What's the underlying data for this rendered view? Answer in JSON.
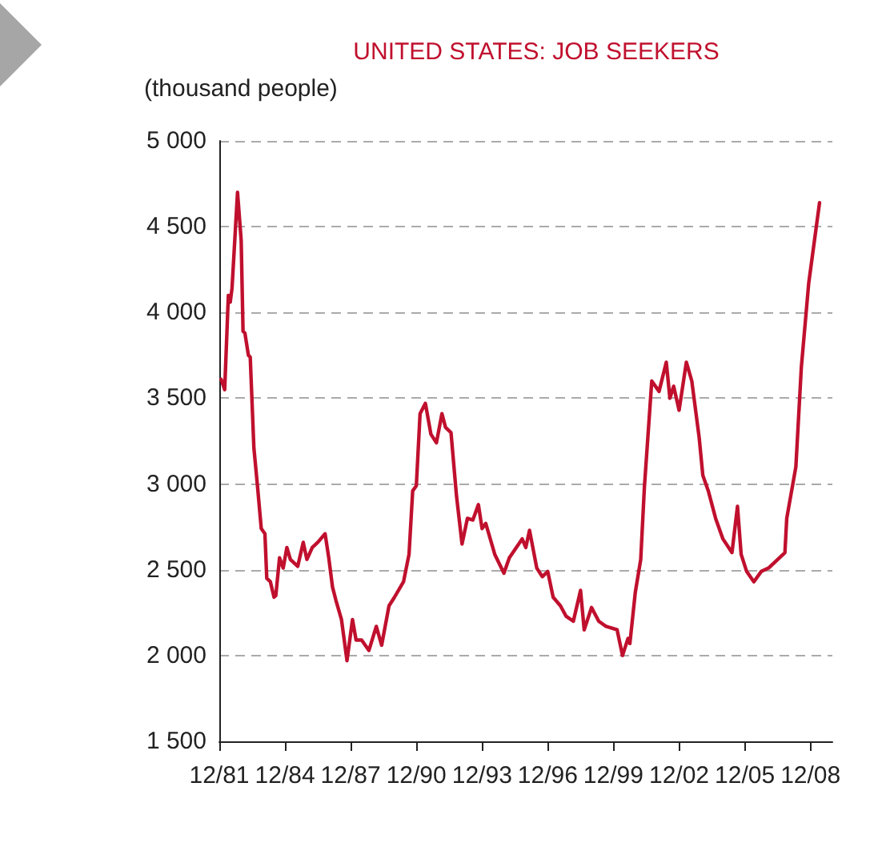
{
  "chart_data": {
    "type": "line",
    "title": "UNITED STATES: JOB SEEKERS",
    "ylabel": "(thousand people)",
    "x": [
      "1982-01",
      "1982-03",
      "1982-05",
      "1982-06",
      "1982-07",
      "1982-10",
      "1982-12",
      "1983-01",
      "1983-02",
      "1983-04",
      "1983-05",
      "1983-07",
      "1983-09",
      "1983-11",
      "1984-01",
      "1984-02",
      "1984-04",
      "1984-06",
      "1984-07",
      "1984-09",
      "1984-11",
      "1985-01",
      "1985-03",
      "1985-07",
      "1985-10",
      "1985-12",
      "1986-03",
      "1986-06",
      "1986-10",
      "1986-12",
      "1987-02",
      "1987-04",
      "1987-07",
      "1987-10",
      "1988-01",
      "1988-03",
      "1988-06",
      "1988-10",
      "1989-02",
      "1989-05",
      "1989-09",
      "1989-12",
      "1990-05",
      "1990-08",
      "1990-10",
      "1990-12",
      "1991-02",
      "1991-05",
      "1991-08",
      "1991-11",
      "1992-02",
      "1992-04",
      "1992-07",
      "1992-10",
      "1993-01",
      "1993-04",
      "1993-07",
      "1993-10",
      "1993-12",
      "1994-02",
      "1994-07",
      "1994-12",
      "1995-03",
      "1995-10",
      "1995-12",
      "1996-02",
      "1996-06",
      "1996-09",
      "1996-12",
      "1997-03",
      "1997-07",
      "1997-10",
      "1998-02",
      "1998-06",
      "1998-08",
      "1998-12",
      "1999-04",
      "1999-08",
      "2000-02",
      "2000-05",
      "2000-08",
      "2000-09",
      "2000-12",
      "2001-03",
      "2001-05",
      "2001-09",
      "2002-01",
      "2002-05",
      "2002-07",
      "2002-09",
      "2002-12",
      "2003-04",
      "2003-07",
      "2003-11",
      "2004-01",
      "2004-04",
      "2004-08",
      "2004-12",
      "2005-05",
      "2005-08",
      "2005-10",
      "2006-01",
      "2006-05",
      "2006-09",
      "2007-01",
      "2007-10",
      "2007-11",
      "2008-04",
      "2008-07",
      "2008-11",
      "2009-05"
    ],
    "series": [
      {
        "color": "#c0102e",
        "values": [
          3610,
          3550,
          4100,
          4060,
          4140,
          4700,
          4420,
          3890,
          3880,
          3750,
          3740,
          3210,
          2980,
          2740,
          2710,
          2450,
          2430,
          2340,
          2350,
          2570,
          2510,
          2630,
          2560,
          2520,
          2660,
          2560,
          2630,
          2660,
          2710,
          2570,
          2400,
          2320,
          2210,
          1970,
          2210,
          2090,
          2090,
          2030,
          2170,
          2060,
          2290,
          2340,
          2430,
          2590,
          2960,
          2990,
          3410,
          3470,
          3290,
          3240,
          3410,
          3330,
          3300,
          2930,
          2650,
          2800,
          2790,
          2880,
          2740,
          2770,
          2590,
          2480,
          2570,
          2680,
          2630,
          2730,
          2510,
          2460,
          2490,
          2340,
          2290,
          2230,
          2200,
          2380,
          2150,
          2280,
          2200,
          2170,
          2150,
          2000,
          2100,
          2070,
          2370,
          2560,
          2980,
          3600,
          3540,
          3710,
          3500,
          3570,
          3430,
          3710,
          3600,
          3270,
          3050,
          2960,
          2800,
          2680,
          2600,
          2870,
          2590,
          2490,
          2430,
          2490,
          2510,
          2600,
          2800,
          3100,
          3680,
          4170,
          4640
        ]
      }
    ],
    "xlim": [
      "1981-12",
      "2009-12"
    ],
    "xticks": [
      {
        "value": "1981-12",
        "label": "12/81"
      },
      {
        "value": "1984-12",
        "label": "12/84"
      },
      {
        "value": "1987-12",
        "label": "12/87"
      },
      {
        "value": "1990-12",
        "label": "12/90"
      },
      {
        "value": "1993-12",
        "label": "12/93"
      },
      {
        "value": "1996-12",
        "label": "12/96"
      },
      {
        "value": "1999-12",
        "label": "12/99"
      },
      {
        "value": "2002-12",
        "label": "12/02"
      },
      {
        "value": "2005-12",
        "label": "12/05"
      },
      {
        "value": "2008-12",
        "label": "12/08"
      }
    ],
    "ylim": [
      1500,
      5000
    ],
    "yticks": [
      {
        "value": 1500,
        "label": "1 500"
      },
      {
        "value": 2000,
        "label": "2 000"
      },
      {
        "value": 2500,
        "label": "2 500"
      },
      {
        "value": 3000,
        "label": "3 000"
      },
      {
        "value": 3500,
        "label": "3 500"
      },
      {
        "value": 4000,
        "label": "4 000"
      },
      {
        "value": 4500,
        "label": "4 500"
      },
      {
        "value": 5000,
        "label": "5 000"
      }
    ],
    "grid": "y",
    "marker": "none"
  }
}
